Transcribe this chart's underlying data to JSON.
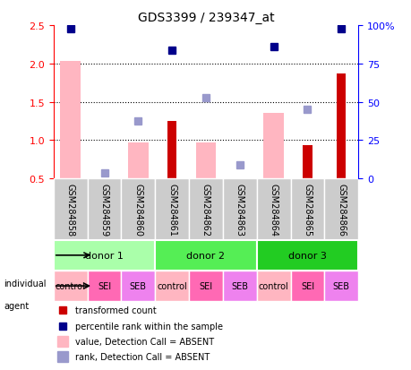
{
  "title": "GDS3399 / 239347_at",
  "samples": [
    "GSM284858",
    "GSM284859",
    "GSM284860",
    "GSM284861",
    "GSM284862",
    "GSM284863",
    "GSM284864",
    "GSM284865",
    "GSM284866"
  ],
  "red_bars": [
    null,
    null,
    null,
    1.25,
    null,
    null,
    null,
    0.93,
    1.87
  ],
  "pink_bars": [
    2.03,
    null,
    0.97,
    null,
    0.97,
    null,
    1.35,
    null,
    null
  ],
  "blue_squares": [
    2.45,
    null,
    null,
    2.17,
    null,
    null,
    2.22,
    null,
    2.45
  ],
  "lavender_squares": [
    null,
    0.57,
    1.25,
    null,
    1.55,
    0.68,
    null,
    1.4,
    null
  ],
  "ylim_left": [
    0.5,
    2.5
  ],
  "ylim_right": [
    0,
    100
  ],
  "yticks_left": [
    0.5,
    1.0,
    1.5,
    2.0,
    2.5
  ],
  "yticks_right": [
    0,
    25,
    50,
    75,
    100
  ],
  "ytick_labels_right": [
    "0",
    "25",
    "50",
    "75",
    "100%"
  ],
  "hlines": [
    1.0,
    1.5,
    2.0
  ],
  "donors": [
    {
      "label": "donor 1",
      "start": 0,
      "end": 3,
      "color": "#90EE90"
    },
    {
      "label": "donor 2",
      "start": 3,
      "end": 6,
      "color": "#66DD66"
    },
    {
      "label": "donor 3",
      "start": 6,
      "end": 9,
      "color": "#44CC44"
    }
  ],
  "agents": [
    "control",
    "SEI",
    "SEB",
    "control",
    "SEI",
    "SEB",
    "control",
    "SEI",
    "SEB"
  ],
  "agent_colors": [
    "#FFB6C1",
    "#FF69B4",
    "#EE82EE",
    "#FFB6C1",
    "#FF69B4",
    "#EE82EE",
    "#FFB6C1",
    "#FF69B4",
    "#EE82EE"
  ],
  "bar_color_red": "#CC0000",
  "bar_color_pink": "#FFB6C1",
  "square_color_blue": "#00008B",
  "square_color_lavender": "#9999CC",
  "bg_plot": "#FFFFFF",
  "bg_sample_row": "#CCCCCC",
  "individual_arrow_color": "#000000",
  "agent_arrow_color": "#000000",
  "legend_items": [
    {
      "color": "#CC0000",
      "label": "transformed count"
    },
    {
      "color": "#00008B",
      "label": "percentile rank within the sample"
    },
    {
      "color": "#FFB6C1",
      "label": "value, Detection Call = ABSENT"
    },
    {
      "color": "#9999CC",
      "label": "rank, Detection Call = ABSENT"
    }
  ]
}
